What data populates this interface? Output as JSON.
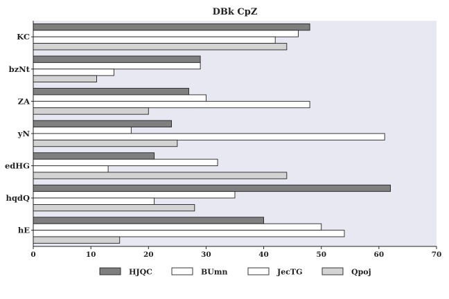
{
  "chart_data": {
    "type": "bar",
    "orientation": "horizontal",
    "title": "DBk CpZ",
    "xlabel": "",
    "ylabel": "",
    "categories": [
      "KC",
      "bzNt",
      "ZA",
      "yN",
      "edHG",
      "hqdQ",
      "hE"
    ],
    "series": [
      {
        "name": "HJQC",
        "values": [
          48,
          29,
          27,
          24,
          21,
          62,
          40
        ]
      },
      {
        "name": "BUmn",
        "values": [
          46,
          29,
          30,
          17,
          32,
          35,
          50
        ]
      },
      {
        "name": "JecTG",
        "values": [
          42,
          14,
          48,
          61,
          13,
          21,
          54
        ]
      },
      {
        "name": "Qpoj",
        "values": [
          44,
          11,
          20,
          25,
          44,
          28,
          15
        ]
      }
    ],
    "xlim": [
      0,
      70
    ],
    "xticks": [
      0,
      10,
      20,
      30,
      40,
      50,
      60,
      70
    ],
    "grid": false,
    "legend_position": "bottom",
    "colors": {
      "HJQC": "#7f7f7f",
      "BUmn": "#ffffff",
      "JecTG": "#ffffff",
      "Qpoj": "#d3d3d3",
      "plot_background": "#e8e8f2",
      "bar_outline": "#222222"
    }
  }
}
